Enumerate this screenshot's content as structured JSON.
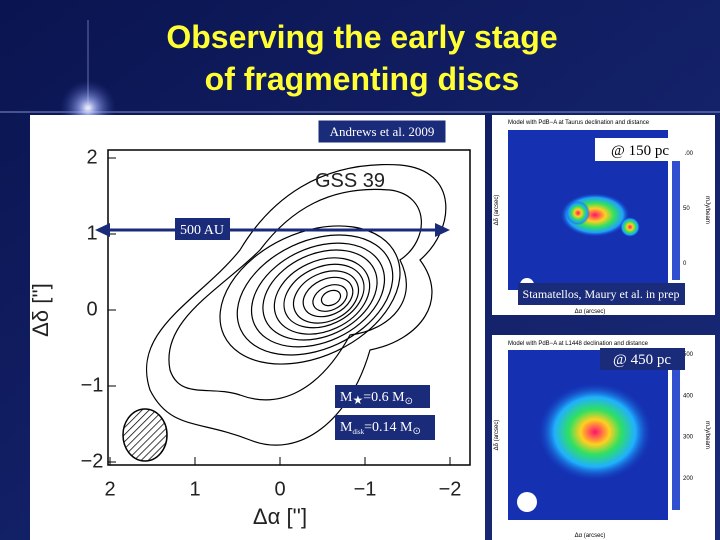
{
  "title": {
    "line1": "Observing the early stage",
    "line2": "of fragmenting discs"
  },
  "left_panel": {
    "reference": "Andrews et al. 2009",
    "source": "GSS 39",
    "scale_bar": "500 AU",
    "y_axis_label": "Δδ ['']",
    "x_axis_label": "Δα ['']",
    "y_ticks": [
      "2",
      "1",
      "0",
      "−1",
      "−2"
    ],
    "x_ticks": [
      "2",
      "1",
      "0",
      "−1",
      "−2"
    ],
    "star_mass": {
      "symbol": "M",
      "subscript": "★",
      "text": "=0.6 M",
      "sun": "⊙"
    },
    "disk_mass": {
      "symbol": "M",
      "subscript": "disk",
      "text": "=0.14 M",
      "sun": "⊙"
    }
  },
  "right_panels": {
    "top": {
      "caption": "Model with PdB−A at Taurus declination and distance",
      "distance": "@ 150 pc",
      "x_label": "Δα (arcsec)",
      "y_label": "Δδ (arcsec)",
      "colorbar_label": "mJy/beam",
      "colorbar_ticks": [
        "100",
        "50",
        "0"
      ]
    },
    "credit": "Stamatellos, Maury et al. in prep",
    "bottom": {
      "caption": "Model with PdB−A at L1448 declination and distance",
      "distance": "@ 450 pc",
      "x_label": "Δα (arcsec)",
      "y_label": "Δδ (arcsec)",
      "colorbar_label": "mJy/beam",
      "colorbar_ticks": [
        "500",
        "400",
        "300",
        "200"
      ]
    }
  }
}
